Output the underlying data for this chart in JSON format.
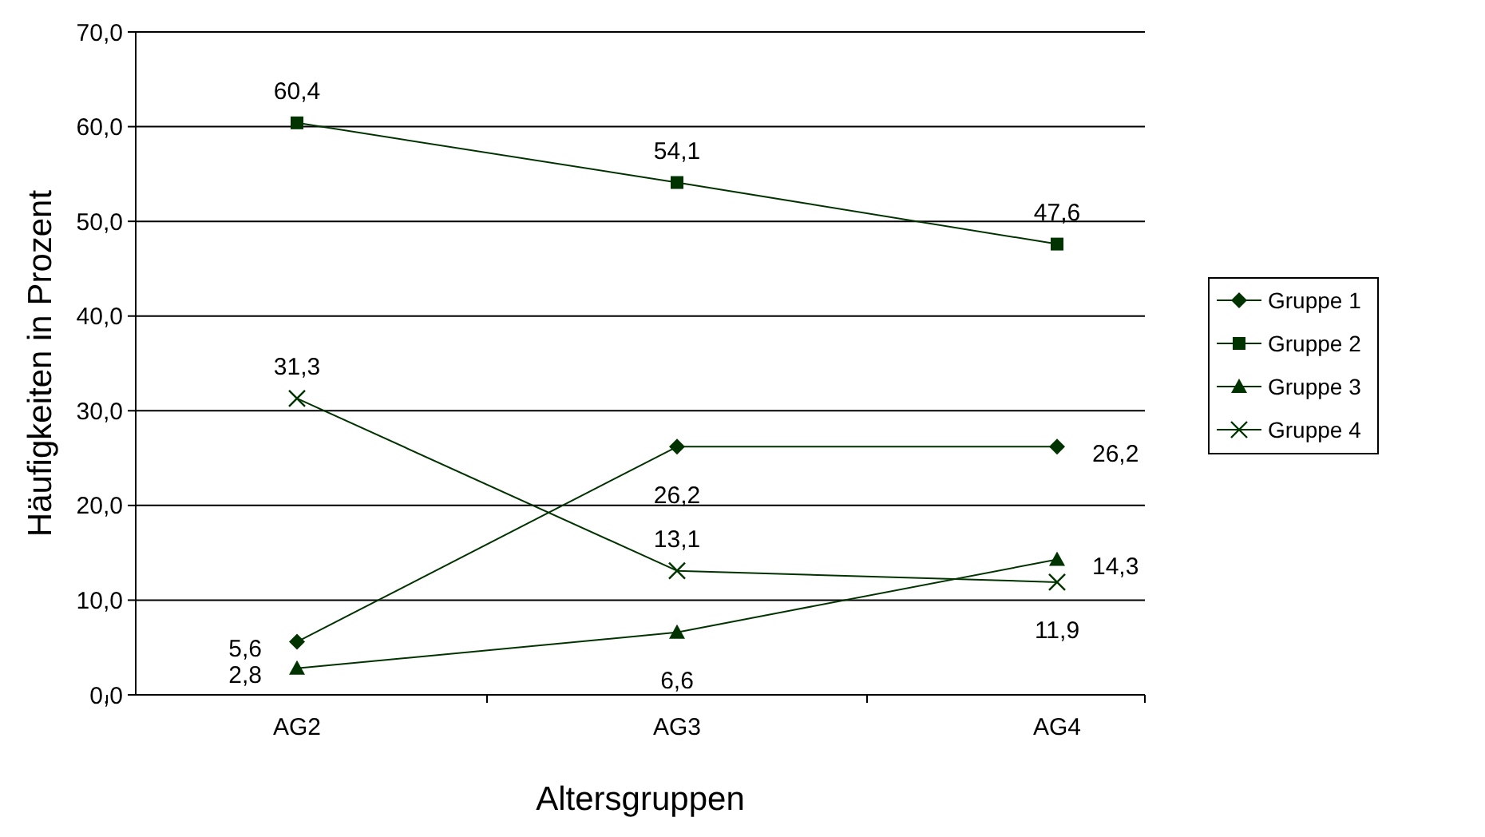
{
  "chart_data": {
    "type": "line",
    "xlabel": "Altersgruppen",
    "ylabel": "Häufigkeiten in Prozent",
    "categories": [
      "AG2",
      "AG3",
      "AG4"
    ],
    "series": [
      {
        "name": "Gruppe 1",
        "color": "#003300",
        "marker": "diamond",
        "values": [
          5.6,
          26.2,
          26.2
        ],
        "value_labels": [
          "5,6",
          "26,2",
          "26,2"
        ]
      },
      {
        "name": "Gruppe 2",
        "color": "#003300",
        "marker": "square",
        "values": [
          60.4,
          54.1,
          47.6
        ],
        "value_labels": [
          "60,4",
          "54,1",
          "47,6"
        ]
      },
      {
        "name": "Gruppe 3",
        "color": "#003300",
        "marker": "triangle",
        "values": [
          2.8,
          6.6,
          14.3
        ],
        "value_labels": [
          "2,8",
          "6,6",
          "14,3"
        ]
      },
      {
        "name": "Gruppe 4",
        "color": "#003300",
        "marker": "cross",
        "values": [
          31.3,
          13.1,
          11.9
        ],
        "value_labels": [
          "31,3",
          "13,1",
          "11,9"
        ]
      }
    ],
    "ylim": [
      0,
      70
    ],
    "yticks": [
      {
        "value": 0,
        "label": "0,0"
      },
      {
        "value": 10,
        "label": "10,0"
      },
      {
        "value": 20,
        "label": "20,0"
      },
      {
        "value": 30,
        "label": "30,0"
      },
      {
        "value": 40,
        "label": "40,0"
      },
      {
        "value": 50,
        "label": "50,0"
      },
      {
        "value": 60,
        "label": "60,0"
      },
      {
        "value": 70,
        "label": "70,0"
      }
    ],
    "grid": "y",
    "legend": "right",
    "line_style": "solid"
  }
}
